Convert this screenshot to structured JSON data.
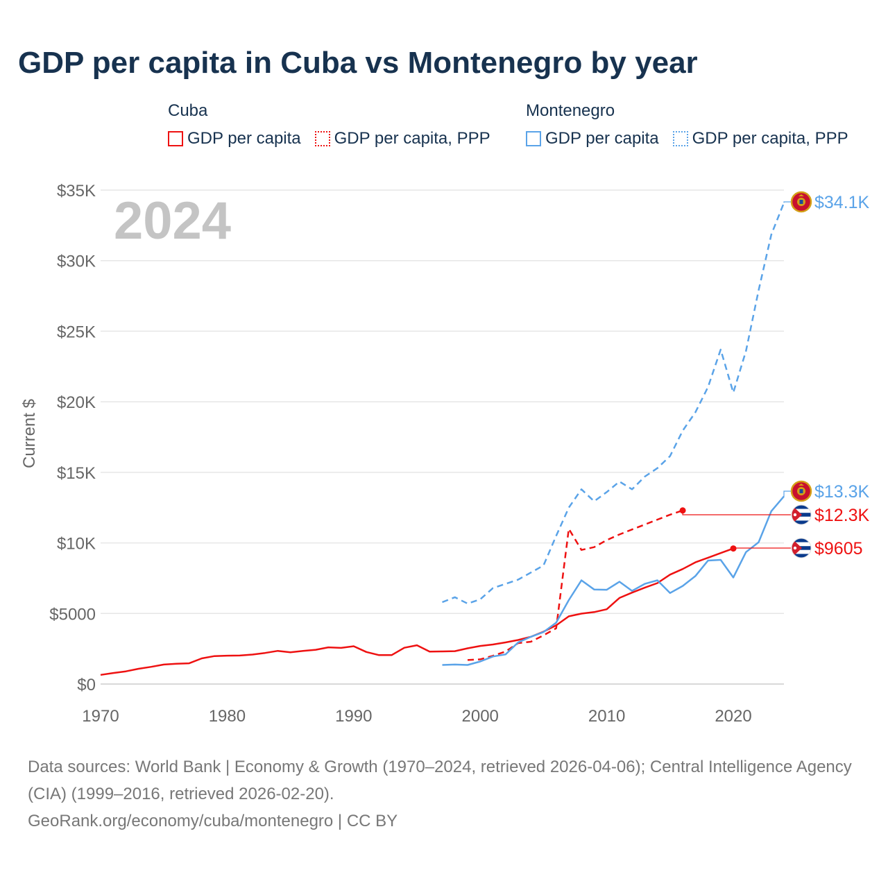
{
  "title": "GDP per capita in Cuba vs Montenegro by year",
  "legend": {
    "groups": [
      {
        "name": "Cuba",
        "items": [
          "GDP per capita",
          "GDP per capita, PPP"
        ]
      },
      {
        "name": "Montenegro",
        "items": [
          "GDP per capita",
          "GDP per capita, PPP"
        ]
      }
    ]
  },
  "colors": {
    "cuba": "#ee1111",
    "montenegro": "#5aa3e8",
    "title": "#17324f",
    "year_watermark": "#c4c4c4",
    "axis_text": "#666666"
  },
  "footer": {
    "sources": "Data sources: World Bank | Economy & Growth (1970–2024, retrieved 2026-04-06); Central Intelligence Agency (CIA) (1999–2016, retrieved 2026-02-20).",
    "credit": "GeoRank.org/economy/cuba/montenegro | CC BY"
  },
  "chart_data": {
    "type": "line",
    "year_label": "2024",
    "ylabel": "Current $",
    "xlim": [
      1970,
      2024
    ],
    "ylim": [
      0,
      35000
    ],
    "x_ticks": [
      1970,
      1980,
      1990,
      2000,
      2010,
      2020
    ],
    "x_tick_labels": [
      "1970",
      "1980",
      "1990",
      "2000",
      "2010",
      "2020"
    ],
    "y_ticks": [
      0,
      5000,
      10000,
      15000,
      20000,
      25000,
      30000,
      35000
    ],
    "y_tick_labels": [
      "$0",
      "$5000",
      "$10K",
      "$15K",
      "$20K",
      "$25K",
      "$30K",
      "$35K"
    ],
    "series": [
      {
        "name": "Cuba GDP per capita",
        "country": "cuba",
        "style": "solid",
        "x": [
          1970,
          1971,
          1972,
          1973,
          1974,
          1975,
          1976,
          1977,
          1978,
          1979,
          1980,
          1981,
          1982,
          1983,
          1984,
          1985,
          1986,
          1987,
          1988,
          1989,
          1990,
          1991,
          1992,
          1993,
          1994,
          1995,
          1996,
          1997,
          1998,
          1999,
          2000,
          2001,
          2002,
          2003,
          2004,
          2005,
          2006,
          2007,
          2008,
          2009,
          2010,
          2011,
          2012,
          2013,
          2014,
          2015,
          2016,
          2017,
          2018,
          2019,
          2020
        ],
        "values": [
          650,
          780,
          900,
          1080,
          1220,
          1380,
          1440,
          1470,
          1820,
          1980,
          2010,
          2020,
          2090,
          2200,
          2350,
          2250,
          2350,
          2430,
          2600,
          2560,
          2680,
          2270,
          2050,
          2050,
          2570,
          2750,
          2300,
          2310,
          2330,
          2530,
          2700,
          2800,
          2950,
          3120,
          3350,
          3710,
          4160,
          4800,
          4990,
          5100,
          5300,
          6100,
          6480,
          6830,
          7150,
          7750,
          8150,
          8620,
          8950,
          9280,
          9605
        ],
        "end_label": "$9605"
      },
      {
        "name": "Cuba GDP per capita, PPP",
        "country": "cuba",
        "style": "dashed",
        "x": [
          1999,
          2000,
          2001,
          2002,
          2003,
          2004,
          2005,
          2006,
          2007,
          2008,
          2009,
          2010,
          2011,
          2012,
          2013,
          2014,
          2015,
          2016
        ],
        "values": [
          1700,
          1750,
          2000,
          2300,
          2900,
          3000,
          3450,
          3950,
          11000,
          9500,
          9700,
          10200,
          10600,
          10950,
          11300,
          11650,
          12000,
          12300
        ],
        "end_label": "$12.3K"
      },
      {
        "name": "Montenegro GDP per capita",
        "country": "montenegro",
        "style": "solid",
        "x": [
          1997,
          1998,
          1999,
          2000,
          2001,
          2002,
          2003,
          2004,
          2005,
          2006,
          2007,
          2008,
          2009,
          2010,
          2011,
          2012,
          2013,
          2014,
          2015,
          2016,
          2017,
          2018,
          2019,
          2020,
          2021,
          2022,
          2023,
          2024
        ],
        "values": [
          1350,
          1380,
          1350,
          1600,
          1950,
          2100,
          2950,
          3350,
          3680,
          4350,
          5950,
          7350,
          6700,
          6680,
          7250,
          6600,
          7100,
          7350,
          6450,
          6950,
          7650,
          8750,
          8800,
          7550,
          9350,
          10050,
          12250,
          13300
        ],
        "end_label": "$13.3K"
      },
      {
        "name": "Montenegro GDP per capita, PPP",
        "country": "montenegro",
        "style": "dashed",
        "x": [
          1997,
          1998,
          1999,
          2000,
          2001,
          2002,
          2003,
          2004,
          2005,
          2006,
          2007,
          2008,
          2009,
          2010,
          2011,
          2012,
          2013,
          2014,
          2015,
          2016,
          2017,
          2018,
          2019,
          2020,
          2021,
          2022,
          2023,
          2024
        ],
        "values": [
          5800,
          6150,
          5700,
          6000,
          6800,
          7100,
          7400,
          7900,
          8400,
          10500,
          12500,
          13800,
          12950,
          13600,
          14350,
          13800,
          14700,
          15300,
          16150,
          17950,
          19250,
          21050,
          23700,
          20650,
          23600,
          27900,
          31850,
          34100
        ],
        "end_label": "$34.1K"
      }
    ]
  }
}
